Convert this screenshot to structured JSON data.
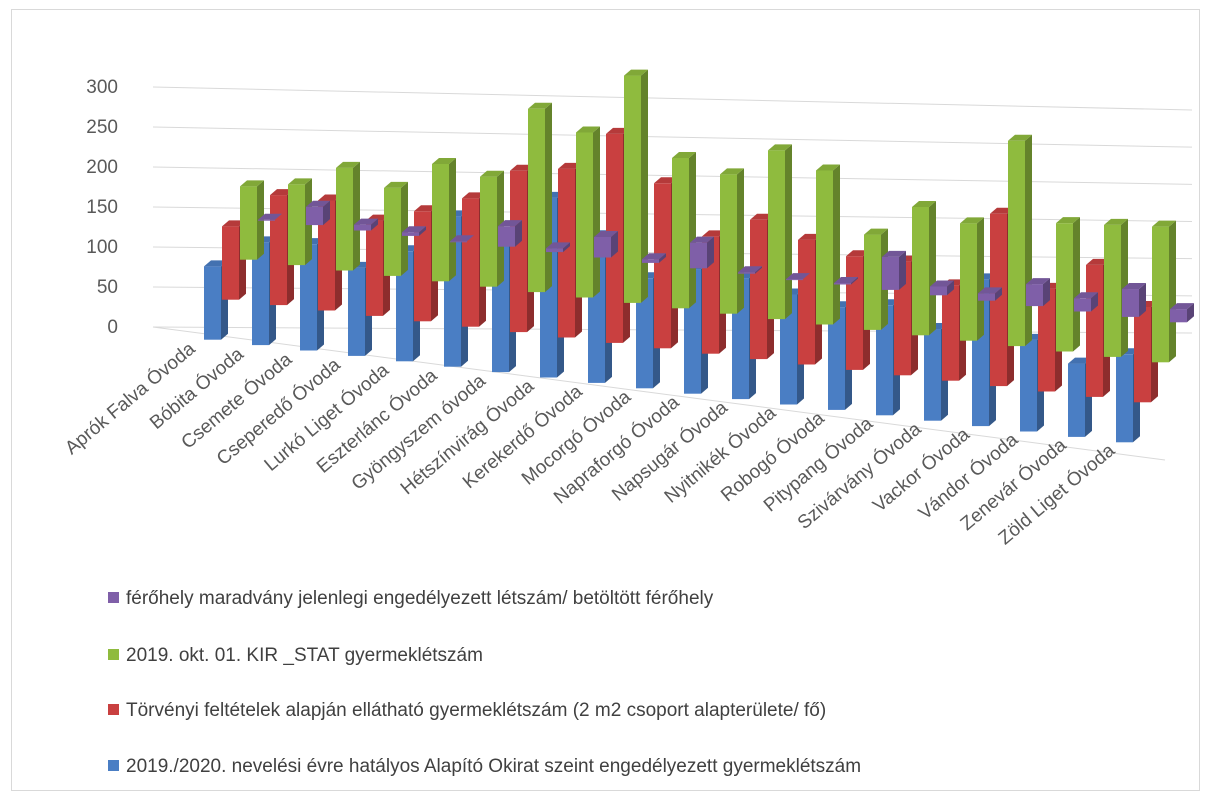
{
  "chart_data": {
    "type": "bar",
    "variant": "3d-clustered-column",
    "categories": [
      "Aprók Falva Óvoda",
      "Bóbita  Óvoda",
      "Csemete  Óvoda",
      "Cseperedő Óvoda",
      "Lurkó Liget Óvoda",
      "Eszterlánc Óvoda",
      "Gyöngyszem óvoda",
      "Hétszínvirág Óvoda",
      "Kerekerdő Óvoda",
      "Mocorgó Óvoda",
      "Napraforgó Óvoda",
      "Napsugár Óvoda",
      "Nyitnikék Óvoda",
      "Robogó Óvoda",
      "Pitypang Óvoda",
      "Szivárvány Óvoda",
      "Vackor Óvoda",
      "Vándor Óvoda",
      "Zenevár Óvoda",
      "Zöld Liget Óvoda"
    ],
    "series": [
      {
        "name": "férőhely maradvány jelenlegi engedélyezett létszám/ betöltött férőhely",
        "color": "#7f5fa8",
        "values": [
          0,
          25,
          8,
          5,
          0,
          28,
          5,
          28,
          5,
          35,
          2,
          0,
          2,
          45,
          12,
          10,
          30,
          18,
          38,
          18
        ]
      },
      {
        "name": "2019. okt. 01. KIR _STAT gyermeklétszám",
        "color": "#8fbb3e",
        "values": [
          100,
          110,
          140,
          120,
          160,
          150,
          250,
          225,
          310,
          205,
          190,
          230,
          210,
          130,
          175,
          160,
          280,
          175,
          180,
          185
        ]
      },
      {
        "name": "Törvényi feltételek alapján ellátható gyermeklétszám                                (2 m2 csoport alapterülete/ fő)",
        "color": "#c94040",
        "values": [
          100,
          150,
          150,
          130,
          150,
          175,
          220,
          230,
          285,
          225,
          160,
          190,
          170,
          155,
          155,
          130,
          235,
          140,
          180,
          130
        ]
      },
      {
        "name": "2019./2020. nevelési évre hatályos Alapító Okirat szeint engedélyezett gyermeklétszám",
        "color": "#4a7ec4",
        "values": [
          100,
          140,
          145,
          120,
          150,
          205,
          185,
          245,
          200,
          150,
          170,
          165,
          150,
          140,
          150,
          125,
          200,
          125,
          100,
          120
        ]
      }
    ],
    "legend_order": [
      0,
      1,
      2,
      3
    ],
    "yticks": [
      0,
      50,
      100,
      150,
      200,
      250,
      300
    ],
    "ylim": [
      0,
      300
    ],
    "grid": true,
    "legend_position": "bottom"
  }
}
